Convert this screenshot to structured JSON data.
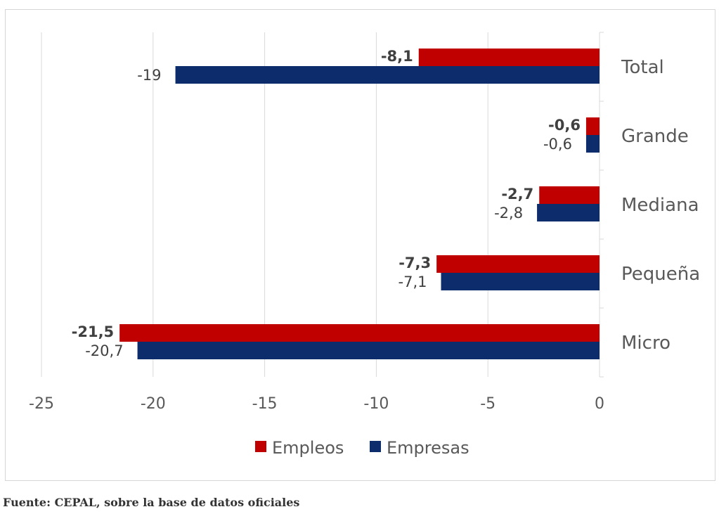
{
  "source_note": "Fuente: CEPAL, sobre la base de datos oficiales",
  "colors": {
    "empleos": "#c00000",
    "empresas": "#0d2c6c",
    "gridline": "#d9d9d9",
    "text": "#595959"
  },
  "chart_data": {
    "type": "bar",
    "orientation": "horizontal",
    "categories": [
      "Total",
      "Grande",
      "Mediana",
      "Pequeña",
      "Micro"
    ],
    "series": [
      {
        "name": "Empleos",
        "values": [
          -8.1,
          -0.6,
          -2.7,
          -7.3,
          -21.5
        ],
        "labels": [
          "-8,1",
          "-0,6",
          "-2,7",
          "-7,3",
          "-21,5"
        ]
      },
      {
        "name": "Empresas",
        "values": [
          -19,
          -0.6,
          -2.8,
          -7.1,
          -20.7
        ],
        "labels": [
          "-19",
          "-0,6",
          "-2,8",
          "-7,1",
          "-20,7"
        ]
      }
    ],
    "xlim": [
      -25,
      0
    ],
    "x_ticks": [
      -25,
      -20,
      -15,
      -10,
      -5,
      0
    ],
    "x_tick_labels": [
      "-25",
      "-20",
      "-15",
      "-10",
      "-5",
      "0"
    ],
    "grid": true,
    "legend_position": "bottom",
    "category_axis_position": "right"
  }
}
